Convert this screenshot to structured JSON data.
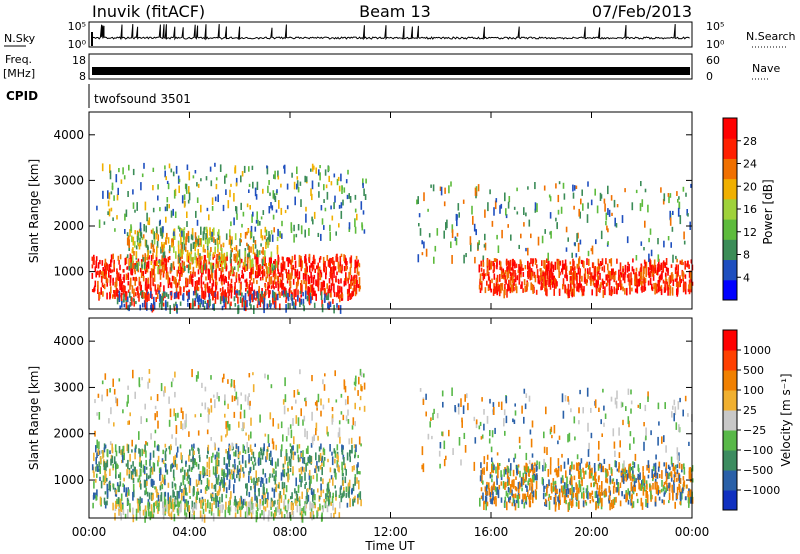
{
  "header": {
    "station": "Inuvik (fitACF)",
    "beam": "Beam 13",
    "date": "07/Feb/2013"
  },
  "strips": {
    "nsky_label": "N.Sky",
    "nsearch_label": "N.Search",
    "noise_ticks": [
      "10^5",
      "10^0"
    ],
    "noise_ticks_right": [
      "10^5",
      "10^0"
    ],
    "freq_label": "Freq.",
    "freq_unit": "[MHz]",
    "freq_ticks": [
      "18",
      "8"
    ],
    "nave_label": "Nave",
    "nave_ticks": [
      "60",
      "0"
    ],
    "cpid_label": "CPID",
    "cpid_value": "twofsound 3501"
  },
  "chart_data": [
    {
      "type": "heatmap",
      "title": "Power",
      "ylabel": "Slant Range [km]",
      "y_ticks": [
        1000,
        2000,
        3000,
        4000
      ],
      "ylim": [
        180,
        4500
      ],
      "xlabel": "Time UT",
      "x_ticks": [
        "00:00",
        "04:00",
        "08:00",
        "12:00",
        "16:00",
        "20:00",
        "00:00"
      ],
      "colorbar": {
        "label": "Power [dB]",
        "ticks": [
          "28",
          "24",
          "20",
          "16",
          "12",
          "8",
          "4"
        ],
        "colors": [
          "#0000ff",
          "#1f4fbf",
          "#3b8c57",
          "#5dbb3c",
          "#9fd23a",
          "#f0b000",
          "#f07000",
          "#ff2000",
          "#ff0000"
        ]
      }
    },
    {
      "type": "heatmap",
      "title": "Velocity",
      "ylabel": "Slant Range [km]",
      "y_ticks": [
        1000,
        2000,
        3000,
        4000
      ],
      "ylim": [
        180,
        4500
      ],
      "xlabel": "Time UT",
      "x_ticks": [
        "00:00",
        "04:00",
        "08:00",
        "12:00",
        "16:00",
        "20:00",
        "00:00"
      ],
      "colorbar": {
        "label": "Velocity [m s⁻¹]",
        "ticks": [
          "1000",
          "500",
          "100",
          "25",
          "−25",
          "−100",
          "−500",
          "−1000"
        ],
        "colors": [
          "#1030c0",
          "#2a60a8",
          "#3c8c60",
          "#58b848",
          "#c8c8c8",
          "#f0b030",
          "#f08000",
          "#ff4000",
          "#ff0000"
        ]
      }
    }
  ],
  "axis": {
    "xlabel": "Time UT",
    "x_ticks": [
      "00:00",
      "04:00",
      "08:00",
      "12:00",
      "16:00",
      "20:00",
      "00:00"
    ]
  }
}
